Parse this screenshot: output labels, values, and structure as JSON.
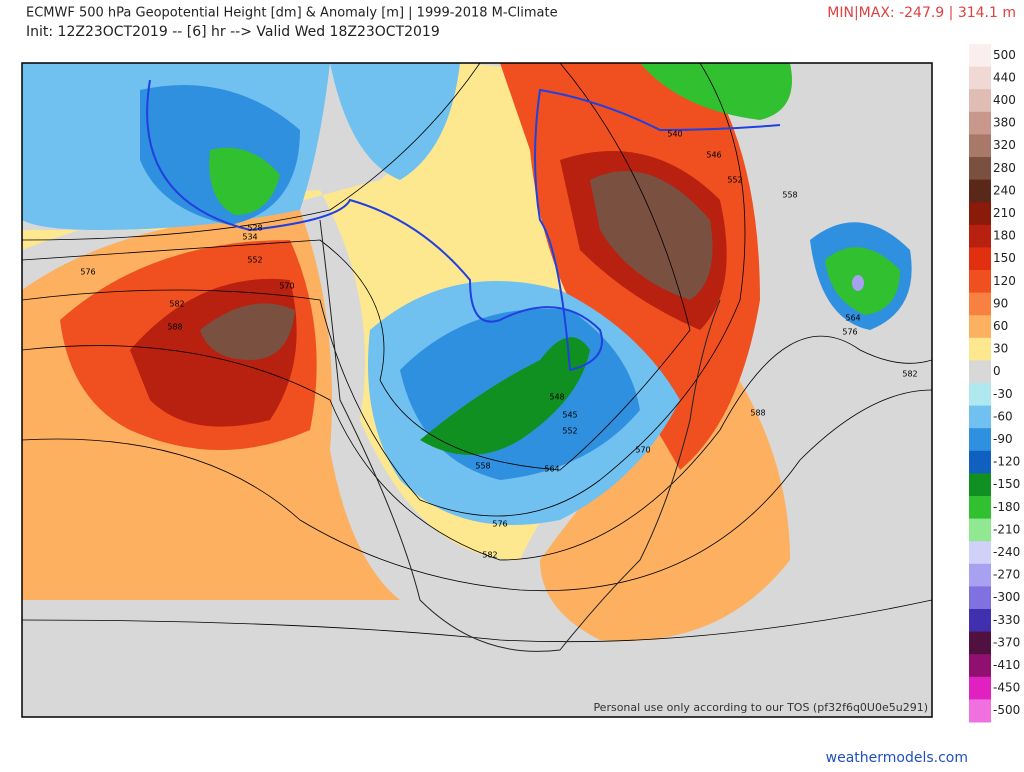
{
  "header": {
    "title": "ECMWF 500 hPa Geopotential Height [dm] & Anomaly [m] | 1999-2018 M-Climate",
    "subtitle": "Init: 12Z23OCT2019 -- [6] hr --> Valid Wed 18Z23OCT2019",
    "minmax": "MIN|MAX: -247.9 | 314.1 m"
  },
  "map": {
    "contour_labels": [
      528,
      534,
      552,
      576,
      582,
      588,
      570,
      540,
      546,
      552,
      558,
      564,
      576,
      582,
      588,
      548,
      545,
      552,
      558,
      564,
      576,
      582,
      570
    ],
    "watermark": "Personal use only according to our TOS (pf32f6q0U0e5u291)"
  },
  "colorbar": {
    "levels": [
      {
        "value": 500,
        "color": "#fbeeee"
      },
      {
        "value": 440,
        "color": "#f0d8d4"
      },
      {
        "value": 400,
        "color": "#e0bcb4"
      },
      {
        "value": 380,
        "color": "#c8988c"
      },
      {
        "value": 320,
        "color": "#a87868"
      },
      {
        "value": 280,
        "color": "#7a5040"
      },
      {
        "value": 240,
        "color": "#5a2818"
      },
      {
        "value": 210,
        "color": "#8a1a0a"
      },
      {
        "value": 180,
        "color": "#b82010"
      },
      {
        "value": 150,
        "color": "#e03010"
      },
      {
        "value": 120,
        "color": "#f05020"
      },
      {
        "value": 90,
        "color": "#f88040"
      },
      {
        "value": 60,
        "color": "#fcb060"
      },
      {
        "value": 30,
        "color": "#fde890"
      },
      {
        "value": 0,
        "color": "#d8d8d8"
      },
      {
        "value": -30,
        "color": "#b0e8f0"
      },
      {
        "value": -60,
        "color": "#70c0f0"
      },
      {
        "value": -90,
        "color": "#3090e0"
      },
      {
        "value": -120,
        "color": "#1060c0"
      },
      {
        "value": -150,
        "color": "#109020"
      },
      {
        "value": -180,
        "color": "#30c030"
      },
      {
        "value": -210,
        "color": "#90e890"
      },
      {
        "value": -240,
        "color": "#d0d0f8"
      },
      {
        "value": -270,
        "color": "#a8a0f0"
      },
      {
        "value": -300,
        "color": "#8070e0"
      },
      {
        "value": -330,
        "color": "#4030b0"
      },
      {
        "value": -370,
        "color": "#501040"
      },
      {
        "value": -410,
        "color": "#901070"
      },
      {
        "value": -450,
        "color": "#e020c0"
      },
      {
        "value": -500,
        "color": "#f070e0"
      }
    ]
  },
  "footer": "weathermodels.com"
}
